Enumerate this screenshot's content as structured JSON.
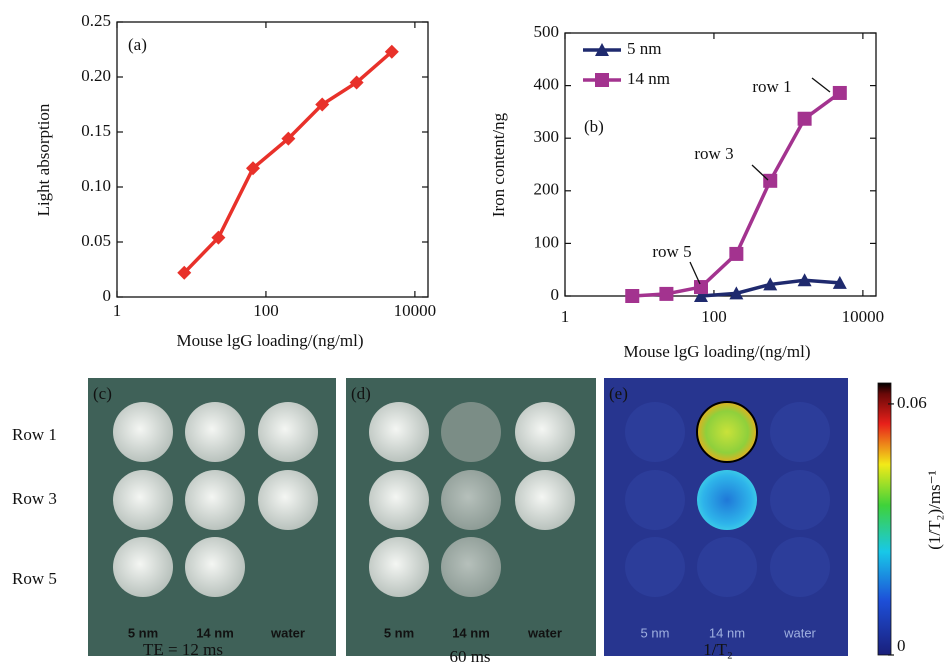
{
  "chart_data": [
    {
      "type": "line",
      "panel_label": "(a)",
      "xlabel": "Mouse lgG loading/(ng/ml)",
      "ylabel": "Light absorption",
      "xscale": "log",
      "xlim": [
        1,
        15000
      ],
      "xticks": [
        1,
        100,
        10000
      ],
      "ylim": [
        0,
        0.25
      ],
      "yticks": [
        0,
        0.05,
        {
          "value": 0.1,
          "label": "0.10"
        },
        0.15,
        {
          "value": 0.2,
          "label": "0.20"
        },
        0.25
      ],
      "series": [
        {
          "color": "#e8312a",
          "marker": "diamond",
          "x": [
            8,
            23,
            67,
            200,
            570,
            1650,
            4900
          ],
          "values": [
            0.022,
            0.054,
            0.117,
            0.144,
            0.175,
            0.195,
            0.223
          ]
        }
      ]
    },
    {
      "type": "line",
      "panel_label": "(b)",
      "xlabel": "Mouse lgG loading/(ng/ml)",
      "ylabel": "Iron content/ng",
      "xscale": "log",
      "xlim": [
        1,
        15000
      ],
      "xticks": [
        1,
        100,
        10000
      ],
      "ylim": [
        0,
        500
      ],
      "yticks": [
        0,
        100,
        200,
        300,
        400,
        500
      ],
      "series": [
        {
          "name": "5 nm",
          "color": "#1f2a6e",
          "marker": "triangle",
          "x": [
            67,
            200,
            570,
            1650,
            4900
          ],
          "values": [
            0,
            5,
            22,
            30,
            25
          ]
        },
        {
          "name": "14 nm",
          "color": "#a3338f",
          "marker": "square",
          "x": [
            8,
            23,
            67,
            200,
            570,
            1650,
            4900
          ],
          "values": [
            0,
            4,
            17,
            80,
            219,
            337,
            386
          ]
        }
      ],
      "annotations": [
        "row 1",
        "row 3",
        "row 5"
      ]
    }
  ],
  "panels": {
    "row_labels": [
      "Row 1",
      "Row 3",
      "Row 5"
    ],
    "items": [
      {
        "label": "(c)",
        "columns": [
          "5 nm",
          "14 nm",
          "water"
        ],
        "caption": "TE = 12 ms"
      },
      {
        "label": "(d)",
        "columns": [
          "5 nm",
          "14 nm",
          "water"
        ],
        "caption": "60 ms"
      },
      {
        "label": "(e)",
        "columns": [
          "5 nm",
          "14 nm",
          "water"
        ],
        "caption": "1/T₂"
      }
    ],
    "colorbar": {
      "label": "(1/T₂)/ms⁻¹",
      "lim": [
        0,
        0.065
      ],
      "ticks": [
        0,
        0.06
      ]
    }
  }
}
